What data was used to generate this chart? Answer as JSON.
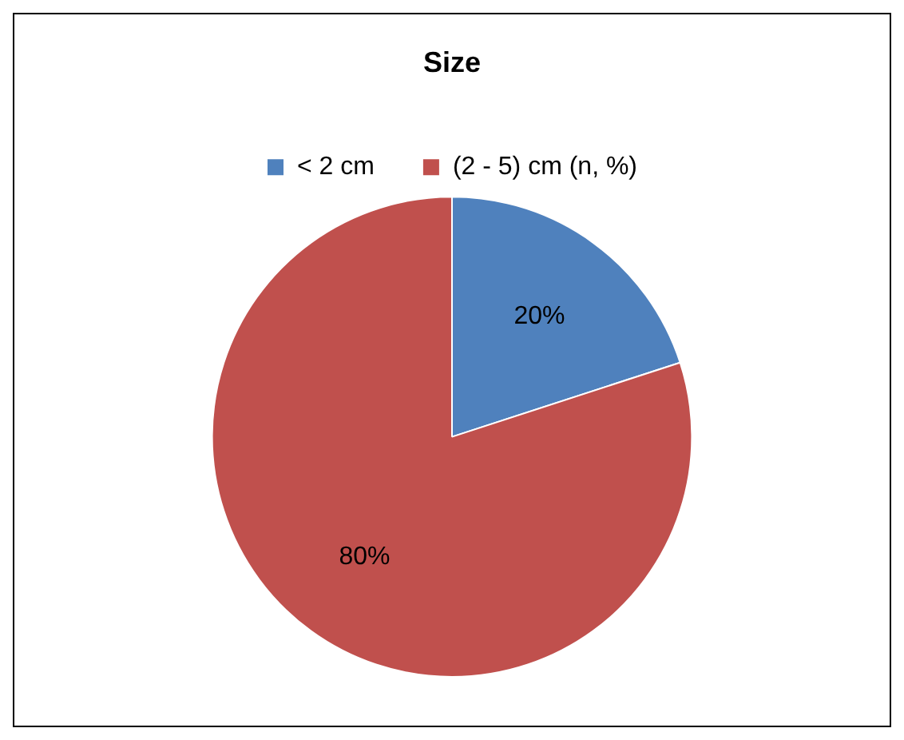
{
  "chart_data": {
    "type": "pie",
    "title": "Size",
    "categories": [
      "< 2 cm",
      "(2 - 5) cm (n, %)"
    ],
    "values": [
      20,
      80
    ],
    "colors": [
      "#4f81bd",
      "#c0504d"
    ],
    "value_labels": [
      "20%",
      "80%"
    ],
    "legend": "top"
  }
}
